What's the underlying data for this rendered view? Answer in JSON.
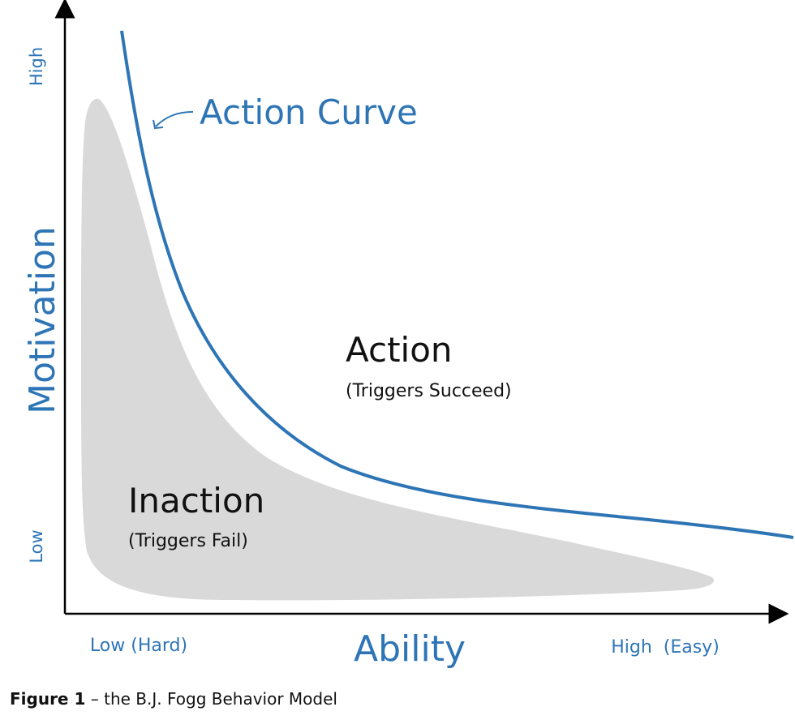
{
  "diagram": {
    "action_curve_label": "Action Curve",
    "action_label": "Action",
    "action_sub": "(Triggers Succeed)",
    "inaction_label": "Inaction",
    "inaction_sub": "(Triggers Fail)",
    "y_axis_title": "Motivation",
    "y_high": "High",
    "y_low": "Low",
    "x_axis_title": "Ability",
    "x_low": "Low (Hard)",
    "x_high": "High  (Easy)",
    "colors": {
      "curve": "#2e75b6",
      "inaction_region": "#d9d9d9",
      "axis": "#000000"
    }
  },
  "caption": {
    "figure_label": "Figure 1",
    "text": " – the B.J. Fogg Behavior Model"
  }
}
